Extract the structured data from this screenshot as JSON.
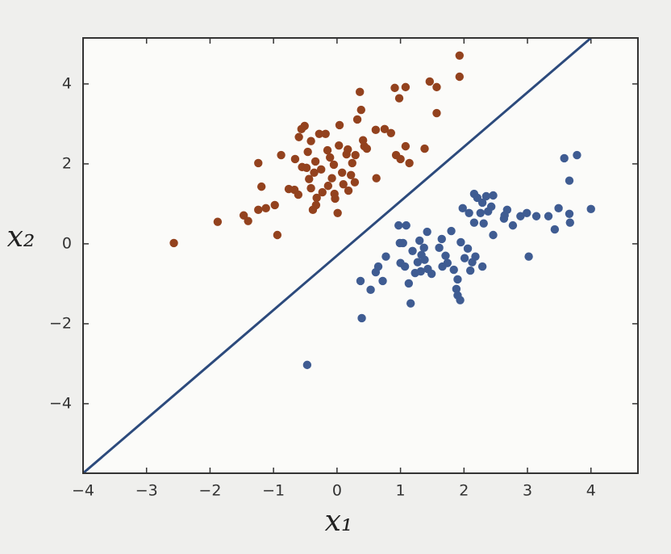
{
  "chart_data": {
    "type": "scatter",
    "xlabel": "x₁",
    "ylabel": "x₂",
    "xlim": [
      -4,
      4.74
    ],
    "ylim": [
      -5.74,
      5.15
    ],
    "xticks": [
      {
        "value": -4,
        "label": "−4"
      },
      {
        "value": -3,
        "label": "−3"
      },
      {
        "value": -2,
        "label": "−2"
      },
      {
        "value": -1,
        "label": "−1"
      },
      0,
      1,
      2,
      3,
      4
    ],
    "yticks": [
      {
        "value": -4,
        "label": "−4"
      },
      {
        "value": -2,
        "label": "−2"
      },
      0,
      2,
      4
    ],
    "series": [
      {
        "color": "#93421e",
        "x": [
          -2.57,
          -1.88,
          -1.47,
          -1.4,
          -1.24,
          -1.19,
          -1.24,
          -1.12,
          -0.98,
          -0.94,
          -0.88,
          -0.76,
          -0.66,
          -0.67,
          -0.61,
          -0.6,
          -0.56,
          -0.51,
          -0.55,
          -0.48,
          -0.46,
          -0.44,
          -0.41,
          -0.41,
          -0.36,
          -0.34,
          -0.32,
          -0.28,
          -0.33,
          -0.38,
          -0.25,
          -0.23,
          -0.18,
          -0.15,
          -0.11,
          -0.14,
          -0.08,
          -0.05,
          -0.04,
          -0.03,
          0.03,
          0.04,
          0.01,
          0.08,
          0.1,
          0.15,
          0.17,
          0.18,
          0.22,
          0.24,
          0.29,
          0.28,
          0.32,
          0.36,
          0.38,
          0.41,
          0.43,
          0.47,
          0.62,
          0.61,
          0.75,
          0.85,
          0.91,
          0.98,
          1.08,
          0.93,
          1.0,
          1.08,
          1.14,
          1.38,
          1.46,
          1.57,
          1.57,
          1.93,
          1.93
        ],
        "y": [
          0.02,
          0.55,
          0.71,
          0.57,
          2.02,
          1.43,
          0.85,
          0.89,
          0.97,
          0.22,
          2.22,
          1.37,
          2.12,
          1.35,
          1.23,
          2.67,
          2.87,
          2.95,
          1.92,
          1.9,
          2.3,
          1.62,
          1.39,
          2.57,
          1.78,
          2.06,
          1.15,
          2.75,
          0.97,
          0.85,
          1.86,
          1.29,
          2.75,
          2.34,
          2.16,
          1.45,
          1.64,
          1.98,
          1.25,
          1.13,
          2.46,
          2.97,
          0.77,
          1.78,
          1.49,
          2.24,
          2.36,
          1.33,
          1.72,
          2.02,
          2.22,
          1.54,
          3.11,
          3.8,
          3.35,
          2.59,
          2.44,
          2.38,
          1.64,
          2.85,
          2.87,
          2.77,
          3.9,
          3.64,
          3.92,
          2.22,
          2.12,
          2.44,
          2.02,
          2.38,
          4.06,
          3.92,
          3.27,
          4.71,
          4.18
        ]
      },
      {
        "color": "#3f5c92",
        "x": [
          -0.47,
          0.39,
          0.37,
          0.53,
          0.61,
          0.65,
          0.72,
          0.77,
          0.97,
          1.09,
          0.99,
          1.04,
          1.0,
          1.07,
          1.13,
          1.16,
          1.19,
          1.23,
          1.27,
          1.3,
          1.33,
          1.32,
          1.37,
          1.38,
          1.42,
          1.43,
          1.49,
          1.61,
          1.65,
          1.66,
          1.71,
          1.74,
          1.8,
          1.84,
          1.88,
          1.9,
          1.94,
          1.9,
          1.95,
          1.98,
          2.01,
          2.06,
          2.08,
          2.1,
          2.13,
          2.16,
          2.16,
          2.18,
          2.21,
          2.26,
          2.29,
          2.29,
          2.31,
          2.35,
          2.38,
          2.43,
          2.46,
          2.46,
          2.63,
          2.64,
          2.68,
          2.77,
          2.89,
          2.99,
          3.02,
          3.14,
          3.33,
          3.43,
          3.49,
          3.58,
          3.66,
          3.66,
          3.67,
          3.78,
          4.0
        ],
        "y": [
          -3.03,
          -1.86,
          -0.93,
          -1.15,
          -0.71,
          -0.57,
          -0.93,
          -0.32,
          0.46,
          0.46,
          0.02,
          0.02,
          -0.48,
          -0.57,
          -0.99,
          -1.49,
          -0.18,
          -0.73,
          -0.46,
          0.08,
          -0.28,
          -0.69,
          -0.1,
          -0.4,
          0.3,
          -0.63,
          -0.75,
          -0.1,
          0.12,
          -0.57,
          -0.3,
          -0.48,
          0.32,
          -0.65,
          -1.13,
          -1.29,
          -1.41,
          -0.89,
          0.04,
          0.89,
          -0.36,
          -0.12,
          0.77,
          -0.67,
          -0.46,
          1.25,
          0.53,
          -0.32,
          1.15,
          0.77,
          -0.57,
          1.03,
          0.51,
          1.19,
          0.81,
          0.93,
          1.21,
          0.22,
          0.63,
          0.71,
          0.85,
          0.46,
          0.69,
          0.77,
          -0.32,
          0.69,
          0.69,
          0.36,
          0.89,
          2.14,
          0.75,
          1.58,
          0.53,
          2.22,
          0.87
        ]
      }
    ],
    "line": {
      "color": "#2c4a7c",
      "x": [
        -4,
        4
      ],
      "y": [
        -5.74,
        5.15
      ]
    }
  }
}
